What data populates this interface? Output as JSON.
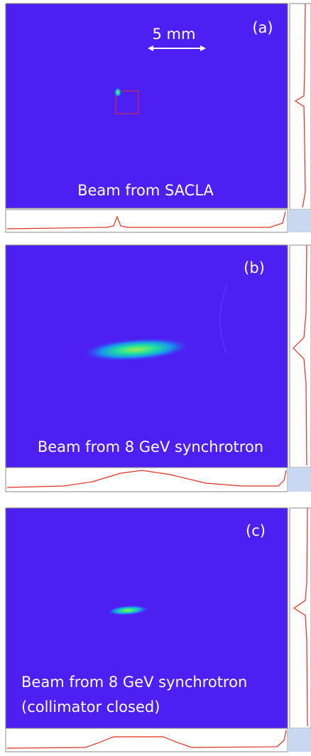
{
  "panels": [
    {
      "label": "(a)",
      "scale": "5 mm",
      "caption": [
        "Beam from SACLA"
      ]
    },
    {
      "label": "(b)",
      "caption": [
        "Beam from 8 GeV synchrotron"
      ]
    },
    {
      "label": "(c)",
      "caption": [
        "Beam from 8 GeV synchrotron",
        "(collimator closed)"
      ]
    }
  ]
}
